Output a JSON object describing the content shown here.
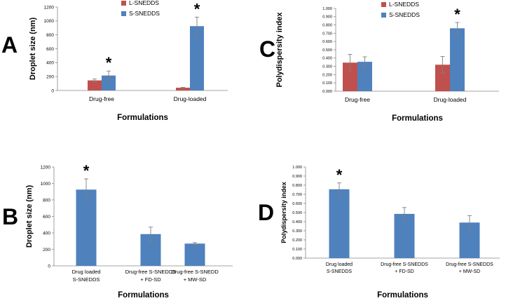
{
  "chart_data": [
    {
      "panel_label": "A",
      "type": "bar",
      "title": "",
      "xlabel": "Formulations",
      "ylabel": "Droplet size (nm)",
      "categories": [
        "Drug-free",
        "Drug-loaded"
      ],
      "series": [
        {
          "name": "L-SNEDDS",
          "color": "#c0504d",
          "values": [
            145,
            40
          ],
          "errors": [
            20,
            5
          ]
        },
        {
          "name": "S-SNEDDS",
          "color": "#4f81bd",
          "values": [
            215,
            925
          ],
          "errors": [
            65,
            130
          ]
        }
      ],
      "ylim": [
        0,
        1200
      ],
      "yticks": [
        "0",
        "200",
        "400",
        "600",
        "800",
        "1000",
        "1200"
      ],
      "significance": [
        "*",
        "*"
      ],
      "grid": false,
      "legend": "top-center"
    },
    {
      "panel_label": "C",
      "type": "bar",
      "title": "",
      "xlabel": "Formulations",
      "ylabel": "Polydispersity index",
      "categories": [
        "Drug-free",
        "Drug-loaded"
      ],
      "series": [
        {
          "name": "L-SNEDDS",
          "color": "#c0504d",
          "values": [
            0.345,
            0.32
          ],
          "errors": [
            0.1,
            0.1
          ]
        },
        {
          "name": "S-SNEDDS",
          "color": "#4f81bd",
          "values": [
            0.355,
            0.76
          ],
          "errors": [
            0.06,
            0.07
          ]
        }
      ],
      "ylim": [
        0,
        1.0
      ],
      "yticks": [
        "0.000",
        "0.100",
        "0.200",
        "0.300",
        "0.400",
        "0.500",
        "0.600",
        "0.700",
        "0.800",
        "0.900",
        "1.000"
      ],
      "significance": [
        "",
        "*"
      ],
      "grid": false,
      "legend": "top-center"
    },
    {
      "panel_label": "B",
      "type": "bar",
      "title": "",
      "xlabel": "Formulations",
      "ylabel": "Droplet size (nm)",
      "categories": [
        [
          "Drug loaded",
          "S-SNEDDS"
        ],
        [
          "Drug-free S-SNEDDS",
          "+ FD-SD"
        ],
        [
          "Drug-free S-SNEDD",
          "+ MW-SD"
        ]
      ],
      "series": [
        {
          "name": "S-SNEDDS",
          "color": "#4f81bd",
          "values": [
            925,
            385,
            270
          ],
          "errors": [
            130,
            85,
            12
          ]
        }
      ],
      "ylim": [
        0,
        1200
      ],
      "yticks": [
        "0",
        "200",
        "400",
        "600",
        "800",
        "1000",
        "1200"
      ],
      "significance": [
        "*",
        "",
        ""
      ],
      "grid": false
    },
    {
      "panel_label": "D",
      "type": "bar",
      "title": "",
      "xlabel": "Formulations",
      "ylabel": "Polydispersity index",
      "categories": [
        [
          "Drug loaded",
          "S-SNEDDS"
        ],
        [
          "Drug-free S-SNEDDS",
          "+ FD-SD"
        ],
        [
          "Drug-free S-SNEDDS",
          "+ MW-SD"
        ]
      ],
      "series": [
        {
          "name": "S-SNEDDS",
          "color": "#4f81bd",
          "values": [
            0.755,
            0.485,
            0.39
          ],
          "errors": [
            0.07,
            0.07,
            0.075
          ]
        }
      ],
      "ylim": [
        0,
        1.0
      ],
      "yticks": [
        "0.000",
        "0.100",
        "0.200",
        "0.300",
        "0.400",
        "0.500",
        "0.600",
        "0.700",
        "0.800",
        "0.900",
        "1.000"
      ],
      "significance": [
        "*",
        "",
        ""
      ],
      "grid": false
    }
  ]
}
